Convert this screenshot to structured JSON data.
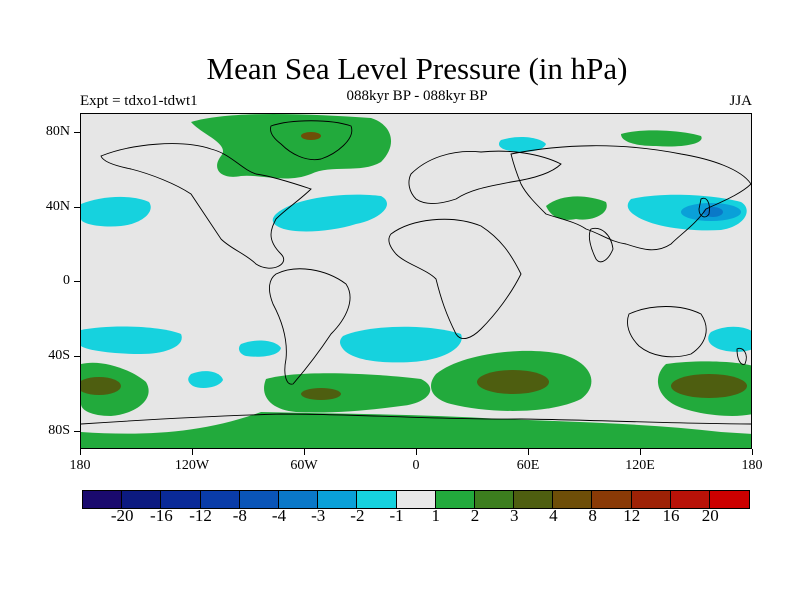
{
  "title": "Mean Sea Level Pressure (in hPa)",
  "expt": "Expt = tdxo1-tdwt1",
  "subtitle": "088kyr BP - 088kyr BP",
  "season": "JJA",
  "lat_labels": [
    "80N",
    "40N",
    "0",
    "40S",
    "80S"
  ],
  "lon_labels": [
    "180",
    "120W",
    "60W",
    "0",
    "60E",
    "120E",
    "180"
  ],
  "colorbar": {
    "colors": [
      "#1a0a6e",
      "#0c1a80",
      "#0a2a98",
      "#0a3ca8",
      "#0a55b8",
      "#0a78c8",
      "#0aa0d8",
      "#16d2de",
      "#e8e8e8",
      "#22aa3c",
      "#3c7e1e",
      "#4e5e10",
      "#6e4e08",
      "#8a3a06",
      "#9e2206",
      "#b81208",
      "#cc0000"
    ],
    "labels": [
      "-20",
      "-16",
      "-12",
      "-8",
      "-4",
      "-3",
      "-2",
      "-1",
      "1",
      "2",
      "3",
      "4",
      "8",
      "12",
      "16",
      "20"
    ]
  },
  "map_colors": {
    "background": "#e6e6e6",
    "cyan": "#16d2de",
    "blue": "#0aa0d8",
    "blue2": "#0a78c8",
    "green": "#22aa3c",
    "olive": "#4e5e10",
    "brown": "#6e4e08"
  }
}
